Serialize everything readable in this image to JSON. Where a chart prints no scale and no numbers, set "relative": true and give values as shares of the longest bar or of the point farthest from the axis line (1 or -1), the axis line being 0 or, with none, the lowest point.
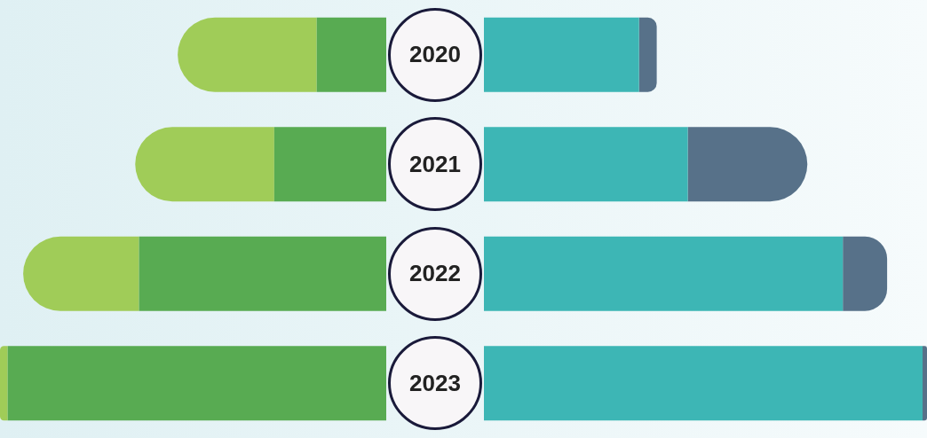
{
  "chart_data": [
    {
      "type": "bar",
      "orientation": "horizontal",
      "relative": true,
      "stacked": true,
      "categories": [
        "2020",
        "2021",
        "2022",
        "2023"
      ],
      "series": [
        {
          "color": "#58ab52",
          "values": [
            -0.18,
            -0.29,
            -0.64,
            -0.98
          ]
        },
        {
          "color": "#a0cc58",
          "values": [
            -0.36,
            -0.36,
            -0.3,
            -0.02
          ]
        }
      ]
    },
    {
      "type": "bar",
      "orientation": "horizontal",
      "relative": true,
      "stacked": true,
      "tick_labels": false,
      "categories": [
        "2020",
        "2021",
        "2022",
        "2023"
      ],
      "series": [
        {
          "color": "#3db6b5",
          "values": [
            0.35,
            0.46,
            0.81,
            0.99
          ]
        },
        {
          "color": "#577189",
          "values": [
            0.04,
            0.27,
            0.1,
            0.01
          ]
        }
      ]
    }
  ]
}
